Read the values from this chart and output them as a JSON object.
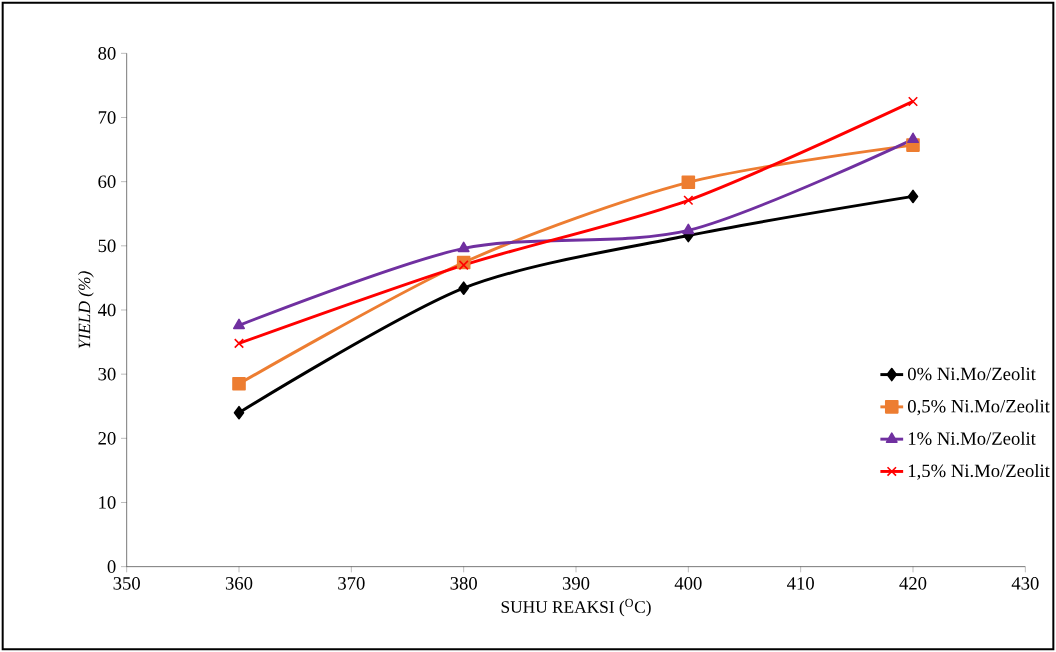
{
  "chart_data": {
    "type": "line",
    "xlabel": "SUHU REAKSI ($^{O}$C)",
    "ylabel": "YIELD (%)",
    "x": [
      360,
      380,
      400,
      420
    ],
    "series": [
      {
        "name": "0% Ni.Mo/Zeolit",
        "color": "#000000",
        "marker": "diamond",
        "values": [
          24.0,
          43.4,
          51.6,
          57.7
        ]
      },
      {
        "name": "0,5% Ni.Mo/Zeolit",
        "color": "#ed7d31",
        "marker": "square",
        "values": [
          28.5,
          47.4,
          59.9,
          65.7
        ]
      },
      {
        "name": "1% Ni.Mo/Zeolit",
        "color": "#7030a0",
        "marker": "triangle",
        "values": [
          37.6,
          49.6,
          52.4,
          66.6
        ]
      },
      {
        "name": "1,5% Ni.Mo/Zeolit",
        "color": "#ff0000",
        "marker": "cross",
        "values": [
          34.8,
          47.0,
          57.1,
          72.5
        ]
      }
    ],
    "xlim": [
      350,
      430
    ],
    "xticks": [
      350,
      360,
      370,
      380,
      390,
      400,
      410,
      420,
      430
    ],
    "ylim": [
      0,
      80
    ],
    "yticks": [
      0,
      10,
      20,
      30,
      40,
      50,
      60,
      70,
      80
    ],
    "grid": false,
    "legend": "right",
    "line_style": "solid"
  }
}
